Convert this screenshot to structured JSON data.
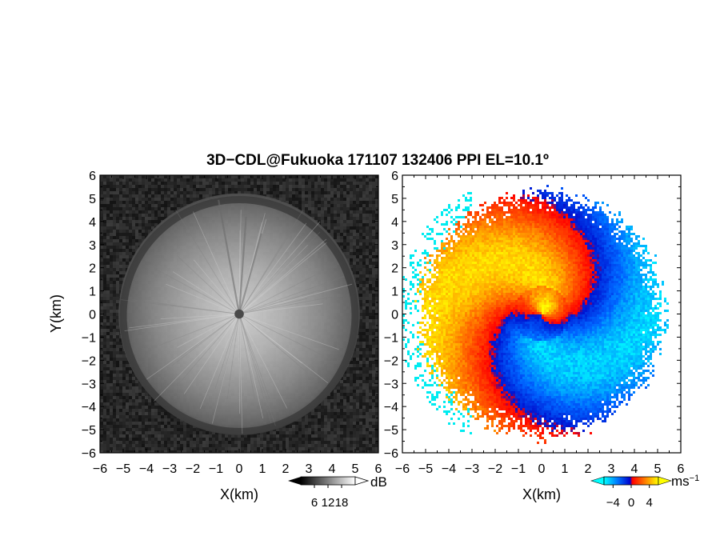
{
  "figure": {
    "title": "3D−CDL@Fukuoka 171107 132406 PPI EL=10.1º"
  },
  "chart_data": [
    {
      "type": "heatmap",
      "panel": "left",
      "quantity": "SNR",
      "xlabel": "X(km)",
      "ylabel": "Y(km)",
      "xlim": [
        -6,
        6
      ],
      "ylim": [
        -6,
        6
      ],
      "xticks": [
        "−6",
        "−5",
        "−4",
        "−3",
        "−2",
        "−1",
        "0",
        "1",
        "2",
        "3",
        "4",
        "5",
        "6"
      ],
      "yticks": [
        "6",
        "5",
        "4",
        "3",
        "2",
        "1",
        "0",
        "−1",
        "−2",
        "−3",
        "−4",
        "−5",
        "−6"
      ],
      "colormap": "grayscale",
      "colorbar": {
        "unit": "dB",
        "range": [
          0,
          24
        ],
        "ticks": [
          6,
          12,
          18
        ],
        "tick_labels": [
          "6",
          "12",
          "18"
        ],
        "colors": [
          "#000000",
          "#ffffff"
        ]
      },
      "features": {
        "bright_disk_radius_km": 5.2,
        "dark_ring_radius_km": 5.0,
        "center_marker_radius_km": 0.2
      }
    },
    {
      "type": "heatmap",
      "panel": "right",
      "quantity": "Doppler velocity",
      "xlabel": "X(km)",
      "xlim": [
        -6,
        6
      ],
      "ylim": [
        -6,
        6
      ],
      "xticks": [
        "−6",
        "−5",
        "−4",
        "−3",
        "−2",
        "−1",
        "0",
        "1",
        "2",
        "3",
        "4",
        "5",
        "6"
      ],
      "yticks": [
        "6",
        "5",
        "4",
        "3",
        "2",
        "1",
        "0",
        "−1",
        "−2",
        "−3",
        "−4",
        "−5",
        "−6"
      ],
      "colormap": "diverging cyan-blue / red-yellow",
      "colorbar": {
        "unit": "ms",
        "unit_exponent": "−1",
        "range": [
          -6,
          6
        ],
        "ticks": [
          -4,
          0,
          4
        ],
        "tick_labels": [
          "−4",
          "0",
          "4"
        ],
        "colors": [
          "#00ffff",
          "#0066ff",
          "#0000cc",
          "#ff0000",
          "#ff8c00",
          "#ffff00"
        ]
      },
      "features": {
        "echo_radius_km": 5.3,
        "pattern": "spiral: positive (red/yellow) to the north-west half, negative (blue) to the south-east half"
      }
    }
  ]
}
